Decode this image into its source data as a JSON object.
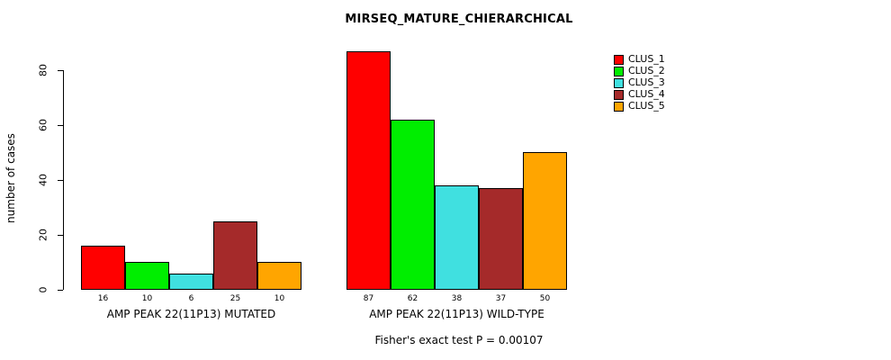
{
  "title": "MIRSEQ_MATURE_CHIERARCHICAL",
  "y_axis": {
    "label": "number of cases",
    "ticks": [
      0,
      20,
      40,
      60,
      80
    ]
  },
  "footer": "Fisher's exact test P = 0.00107",
  "legend": {
    "position": "top-right",
    "entries": [
      {
        "label": "CLUS_1",
        "color": "#FF0000"
      },
      {
        "label": "CLUS_2",
        "color": "#00EE00"
      },
      {
        "label": "CLUS_3",
        "color": "#40E0E0"
      },
      {
        "label": "CLUS_4",
        "color": "#A52A2A"
      },
      {
        "label": "CLUS_5",
        "color": "#FFA500"
      }
    ]
  },
  "chart_data": {
    "type": "bar",
    "title": "MIRSEQ_MATURE_CHIERARCHICAL",
    "ylabel": "number of cases",
    "ylim": [
      0,
      90
    ],
    "yticks": [
      0,
      20,
      40,
      60,
      80
    ],
    "grid": false,
    "legend_position": "top-right",
    "categories": [
      "CLUS_1",
      "CLUS_2",
      "CLUS_3",
      "CLUS_4",
      "CLUS_5"
    ],
    "series_colors": [
      "#FF0000",
      "#00EE00",
      "#40E0E0",
      "#A52A2A",
      "#FFA500"
    ],
    "groups": [
      {
        "label": "AMP PEAK 22(11P13) MUTATED",
        "values": [
          16,
          10,
          6,
          25,
          10
        ]
      },
      {
        "label": "AMP PEAK 22(11P13) WILD-TYPE",
        "values": [
          87,
          62,
          38,
          37,
          50
        ]
      }
    ],
    "annotation": "Fisher's exact test P = 0.00107"
  }
}
